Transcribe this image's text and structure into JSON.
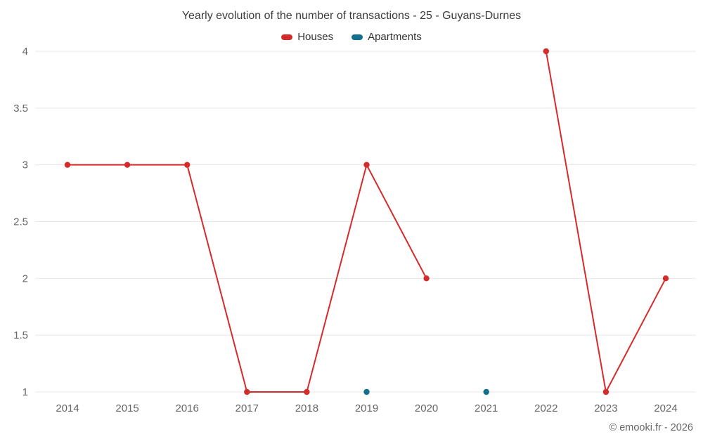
{
  "title": "Yearly evolution of the number of transactions - 25 - Guyans-Durnes",
  "watermark": "© emooki.fr - 2026",
  "chart_data": {
    "type": "line",
    "title": "Yearly evolution of the number of transactions - 25 - Guyans-Durnes",
    "categories": [
      "2014",
      "2015",
      "2016",
      "2017",
      "2018",
      "2019",
      "2020",
      "2021",
      "2022",
      "2023",
      "2024"
    ],
    "series": [
      {
        "name": "Houses",
        "color": "#d62b2b",
        "values": [
          3,
          3,
          3,
          1,
          1,
          3,
          2,
          null,
          4,
          1,
          2
        ]
      },
      {
        "name": "Apartments",
        "color": "#14708f",
        "values": [
          null,
          null,
          null,
          null,
          null,
          1,
          null,
          1,
          null,
          null,
          null
        ]
      }
    ],
    "xlabel": "",
    "ylabel": "",
    "ylim": [
      1,
      4
    ],
    "yticks": [
      1,
      1.5,
      2,
      2.5,
      3,
      3.5,
      4
    ],
    "grid": "horizontal",
    "legend_position": "top",
    "grid_color": "#e8e8e8"
  }
}
